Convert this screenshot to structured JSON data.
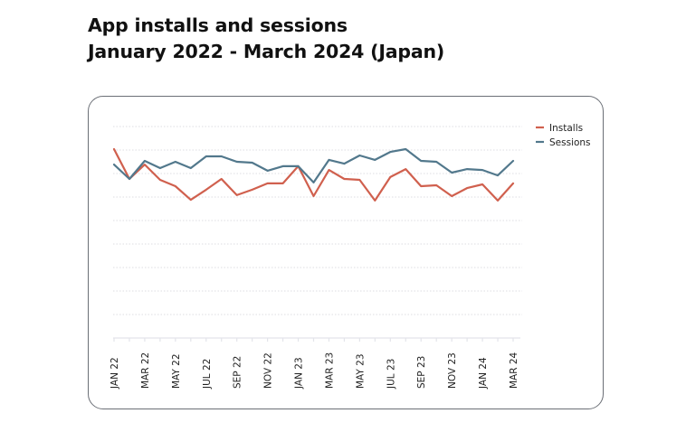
{
  "header": {
    "title_line1": "App installs and sessions",
    "title_line2": "January 2022 - March 2024 (Japan)"
  },
  "chart_data": {
    "type": "line",
    "title": "App installs and sessions January 2022 - March 2024 (Japan)",
    "xlabel": "",
    "ylabel": "",
    "y_units": "relative index (unlabeled axis; one unit per gridline)",
    "ylim": [
      0,
      9
    ],
    "grid": true,
    "grid_style": "dotted horizontal",
    "legend_position": "top-right",
    "x": [
      "JAN 22",
      "FEB 22",
      "MAR 22",
      "APR 22",
      "MAY 22",
      "JUN 22",
      "JUL 22",
      "AUG 22",
      "SEP 22",
      "OCT 22",
      "NOV 22",
      "DEC 22",
      "JAN 23",
      "FEB 23",
      "MAR 23",
      "APR 23",
      "MAY 23",
      "JUN 23",
      "JUL 23",
      "AUG 23",
      "SEP 23",
      "OCT 23",
      "NOV 23",
      "DEC 23",
      "JAN 24",
      "FEB 24",
      "MAR 24"
    ],
    "tick_labels": [
      "JAN 22",
      "MAR 22",
      "MAY 22",
      "JUL 22",
      "SEP 22",
      "NOV 22",
      "JAN 23",
      "MAR 23",
      "MAY 23",
      "JUL 23",
      "SEP 23",
      "NOV 23",
      "JAN 24",
      "MAR 24"
    ],
    "series": [
      {
        "name": "Installs",
        "color": "#d0604e",
        "values": [
          8.04,
          6.77,
          7.38,
          6.73,
          6.46,
          5.88,
          6.31,
          6.77,
          6.08,
          6.31,
          6.58,
          6.58,
          7.31,
          6.04,
          7.15,
          6.77,
          6.73,
          5.85,
          6.85,
          7.19,
          6.46,
          6.5,
          6.04,
          6.38,
          6.54,
          5.85,
          6.58
        ]
      },
      {
        "name": "Sessions",
        "color": "#52788c",
        "values": [
          7.38,
          6.77,
          7.54,
          7.23,
          7.5,
          7.23,
          7.73,
          7.73,
          7.5,
          7.46,
          7.12,
          7.31,
          7.31,
          6.62,
          7.58,
          7.42,
          7.77,
          7.58,
          7.92,
          8.04,
          7.54,
          7.5,
          7.04,
          7.19,
          7.15,
          6.92,
          7.54
        ]
      }
    ]
  }
}
